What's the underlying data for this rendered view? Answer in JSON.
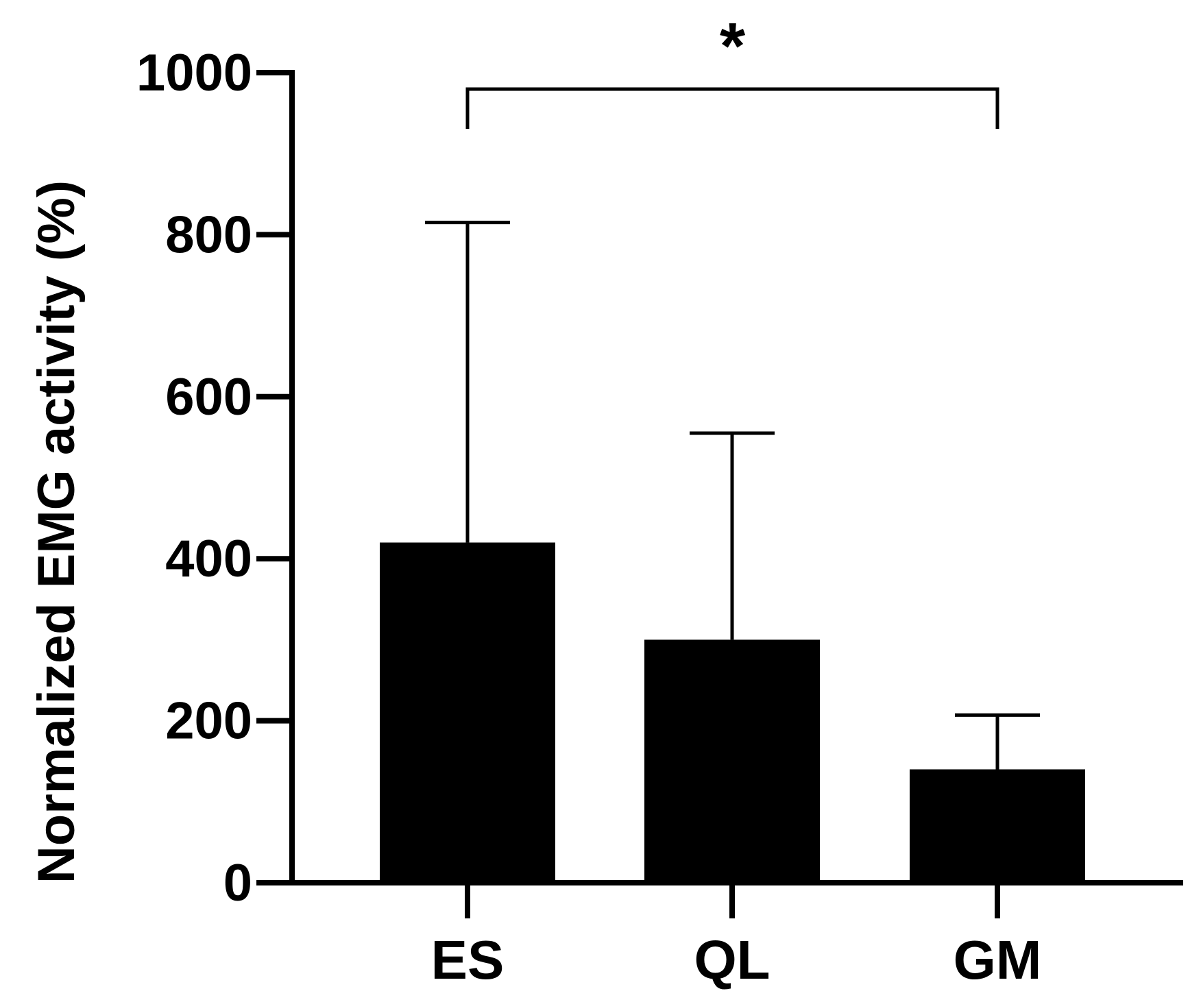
{
  "chart_data": {
    "type": "bar",
    "categories": [
      "ES",
      "QL",
      "GM"
    ],
    "values": [
      420,
      300,
      140
    ],
    "error_upper": [
      815,
      555,
      207
    ],
    "ylabel": "Normalized EMG activity (%)",
    "xlabel": "",
    "ylim": [
      0,
      1000
    ],
    "yticks": [
      "0",
      "200",
      "400",
      "600",
      "800",
      "1000"
    ],
    "grid": false,
    "significance": {
      "from": "ES",
      "to": "GM",
      "label": "*"
    }
  },
  "colors": {
    "bar": "#000000",
    "axis": "#000000"
  }
}
